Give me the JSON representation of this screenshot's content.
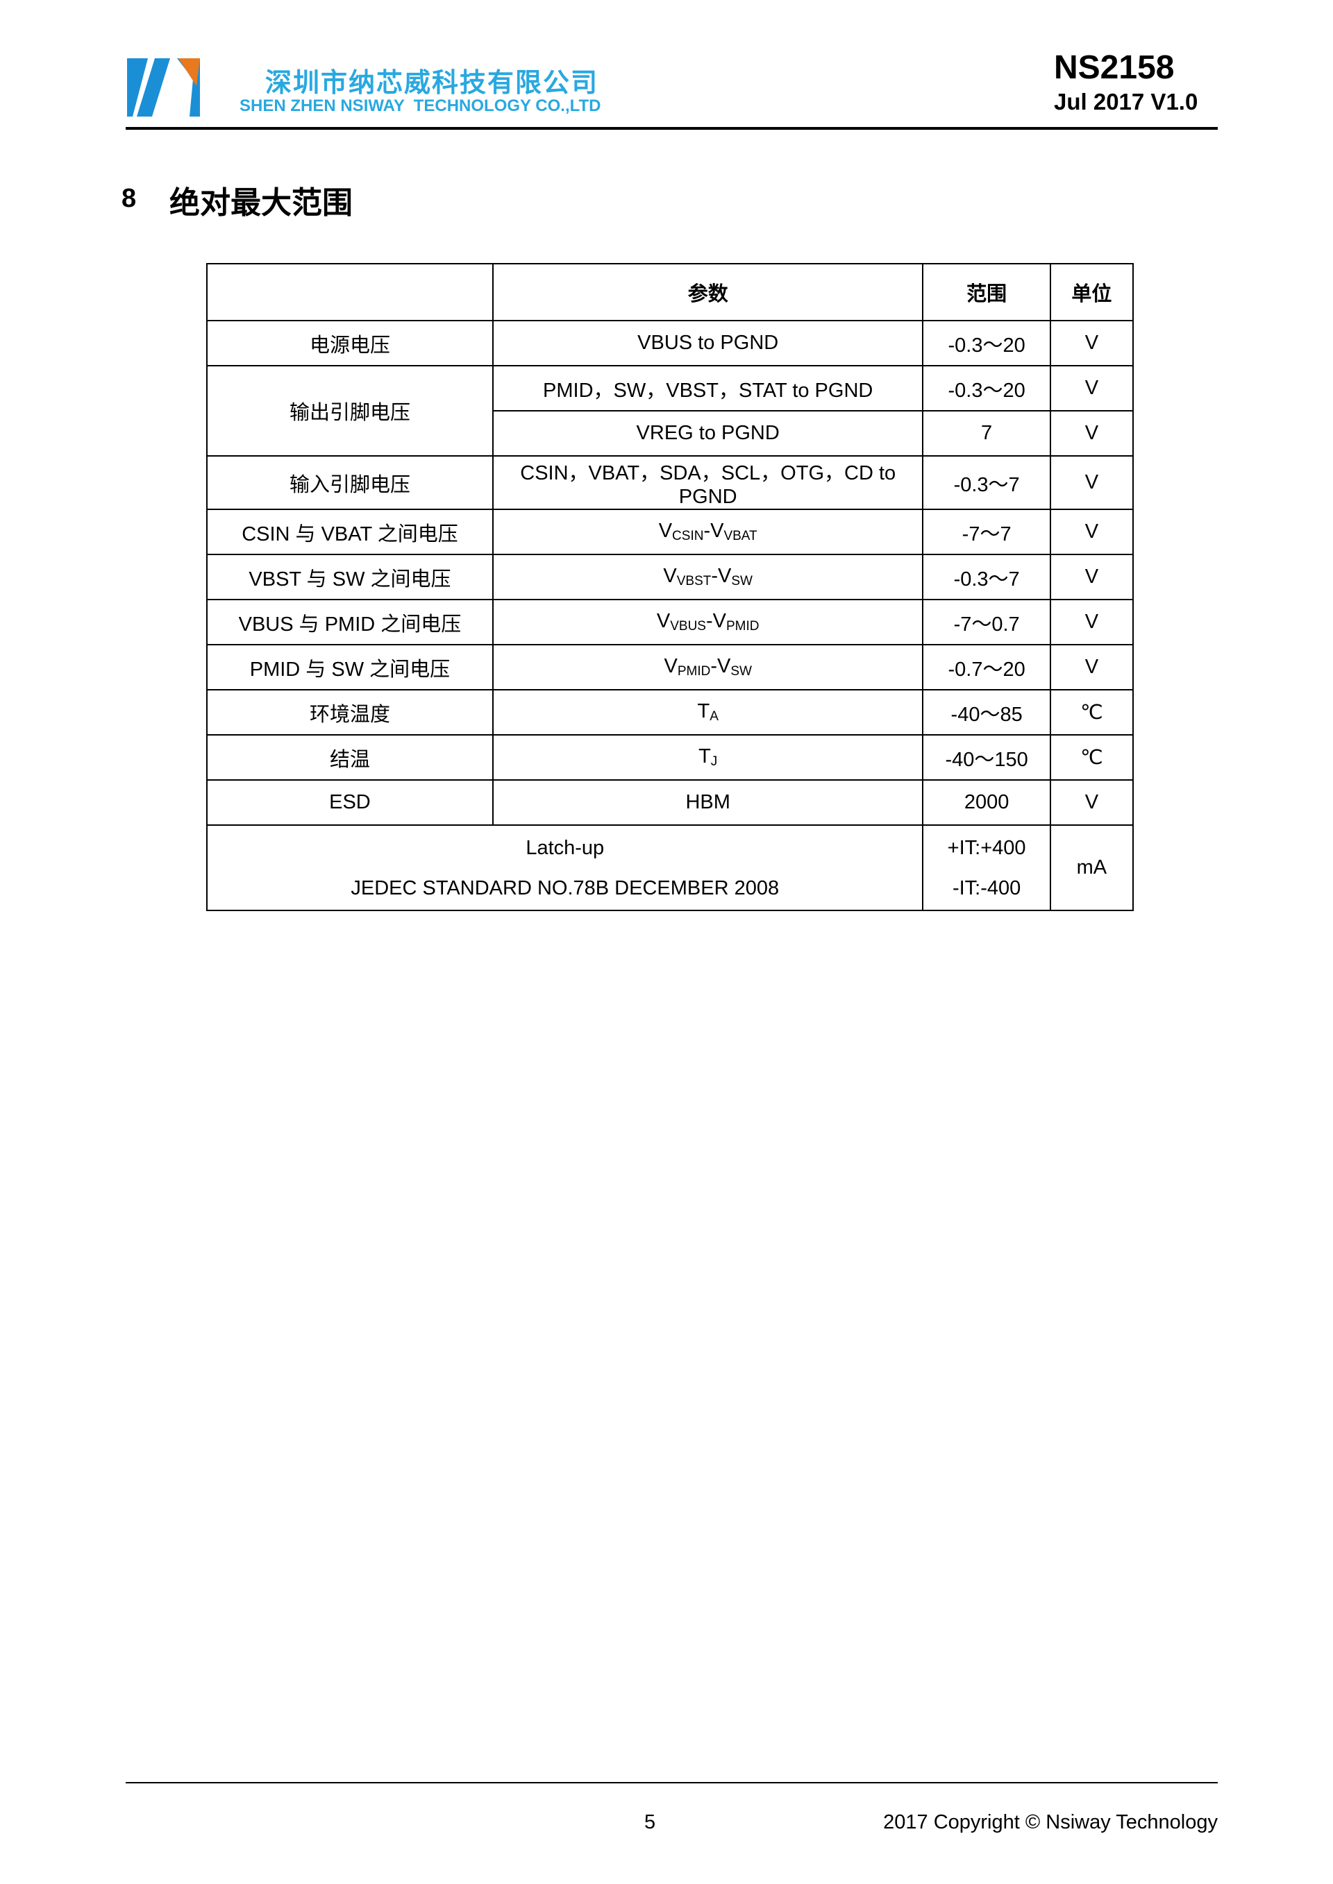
{
  "header": {
    "company_cn": "深圳市纳芯威科技有限公司",
    "company_en": "SHEN ZHEN NSIWAY  TECHNOLOGY CO.,LTD",
    "part_number": "NS2158",
    "version": "Jul 2017 V1.0",
    "logo_colors": {
      "blue": "#1b8fd6",
      "orange": "#e8791e"
    }
  },
  "section": {
    "number": "8",
    "title": "绝对最大范围"
  },
  "table": {
    "headers": [
      "",
      "参数",
      "范围",
      "单位"
    ],
    "rows": [
      {
        "name": "电源电压",
        "param": "VBUS to PGND",
        "range": "-0.3～20",
        "unit": "V"
      },
      {
        "name": "输出引脚电压",
        "param": "PMID，SW，VBST，STAT to PGND",
        "range": "-0.3～20",
        "unit": "V"
      },
      {
        "param": "VREG to PGND",
        "range": "7",
        "unit": "V"
      },
      {
        "name": "输入引脚电压",
        "param": "CSIN，VBAT，SDA，SCL，OTG，CD to PGND",
        "range": "-0.3～7",
        "unit": "V"
      },
      {
        "name": "CSIN 与 VBAT 之间电压",
        "p1": "V",
        "s1": "CSIN",
        "p2": "-V",
        "s2": "VBAT",
        "range": "-7～7",
        "unit": "V"
      },
      {
        "name": "VBST 与 SW 之间电压",
        "p1": "V",
        "s1": "VBST",
        "p2": "-V",
        "s2": "SW",
        "range": "-0.3～7",
        "unit": "V"
      },
      {
        "name": "VBUS 与 PMID 之间电压",
        "p1": "V",
        "s1": "VBUS",
        "p2": "-V",
        "s2": "PMID",
        "range": "-7～0.7",
        "unit": "V"
      },
      {
        "name": "PMID 与 SW 之间电压",
        "p1": "V",
        "s1": "PMID",
        "p2": "-V",
        "s2": "SW",
        "range": "-0.7～20",
        "unit": "V"
      },
      {
        "name": "环境温度",
        "p1": "T",
        "s1": "A",
        "range": "-40～85",
        "unit": "℃"
      },
      {
        "name": "结温",
        "p1": "T",
        "s1": "J",
        "range": "-40～150",
        "unit": "℃"
      },
      {
        "name": "ESD",
        "param": "HBM",
        "range": "2000",
        "unit": "V"
      }
    ],
    "latch": {
      "line1": "Latch-up",
      "line2": "JEDEC STANDARD NO.78B DECEMBER 2008",
      "range1": "+IT:+400",
      "range2": "-IT:-400",
      "unit": "mA"
    }
  },
  "footer": {
    "page": "5",
    "copyright": "2017 Copyright © Nsiway Technology"
  }
}
